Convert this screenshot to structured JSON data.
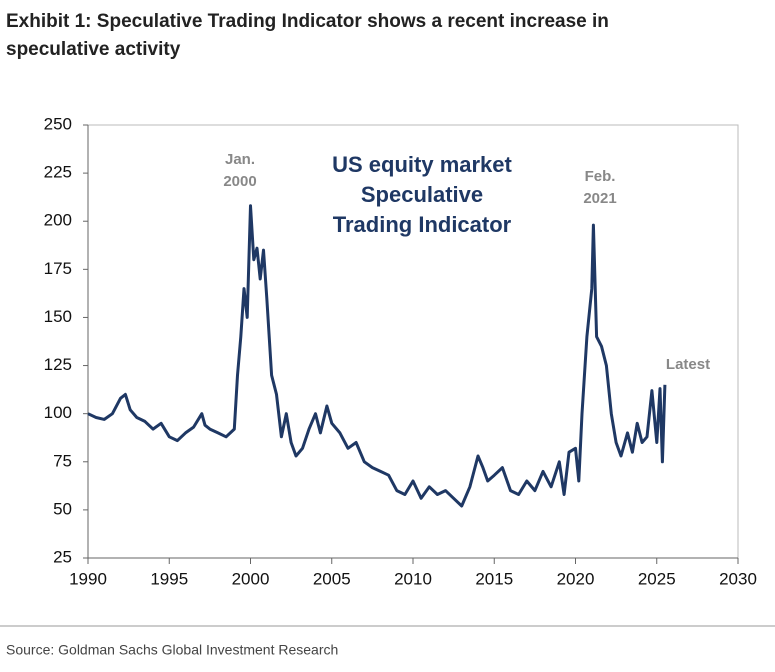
{
  "chart_data": {
    "type": "line",
    "title": [
      "Exhibit 1: Speculative Trading Indicator shows a recent increase in",
      "speculative activity"
    ],
    "inner_title": [
      "US equity market",
      "Speculative",
      "Trading Indicator"
    ],
    "annotations": [
      {
        "lines": [
          "Jan.",
          "2000"
        ]
      },
      {
        "lines": [
          "Feb.",
          "2021"
        ]
      },
      {
        "lines": [
          "Latest"
        ]
      }
    ],
    "source": "Source: Goldman Sachs Global Investment Research",
    "xlim": [
      1990,
      2030
    ],
    "xticks": [
      1990,
      1995,
      2000,
      2005,
      2010,
      2015,
      2020,
      2025,
      2030
    ],
    "ylim": [
      25,
      250
    ],
    "yticks": [
      25,
      50,
      75,
      100,
      125,
      150,
      175,
      200,
      225,
      250
    ],
    "grid": false,
    "series": [
      {
        "name": "Speculative Trading Indicator",
        "color": "#1f3864",
        "x": [
          1990,
          1990.5,
          1991,
          1991.5,
          1992,
          1992.3,
          1992.6,
          1993,
          1993.5,
          1994,
          1994.5,
          1995,
          1995.5,
          1996,
          1996.5,
          1997,
          1997.2,
          1997.5,
          1998,
          1998.5,
          1999,
          1999.2,
          1999.4,
          1999.6,
          1999.8,
          2000,
          2000.2,
          2000.4,
          2000.6,
          2000.8,
          2001,
          2001.3,
          2001.6,
          2001.9,
          2002.2,
          2002.5,
          2002.8,
          2003.2,
          2003.6,
          2004,
          2004.3,
          2004.7,
          2005,
          2005.5,
          2006,
          2006.5,
          2007,
          2007.5,
          2008,
          2008.5,
          2009,
          2009.5,
          2010,
          2010.5,
          2011,
          2011.5,
          2012,
          2012.5,
          2013,
          2013.5,
          2014,
          2014.3,
          2014.6,
          2015,
          2015.5,
          2016,
          2016.5,
          2017,
          2017.5,
          2018,
          2018.5,
          2019,
          2019.3,
          2019.6,
          2020,
          2020.2,
          2020.4,
          2020.7,
          2021,
          2021.1,
          2021.3,
          2021.6,
          2021.9,
          2022.2,
          2022.5,
          2022.8,
          2023.2,
          2023.5,
          2023.8,
          2024.1,
          2024.4,
          2024.7,
          2025,
          2025.2,
          2025.35,
          2025.5
        ],
        "values": [
          100,
          98,
          97,
          100,
          108,
          110,
          102,
          98,
          96,
          92,
          95,
          88,
          86,
          90,
          93,
          100,
          94,
          92,
          90,
          88,
          92,
          120,
          140,
          165,
          150,
          208,
          180,
          186,
          170,
          185,
          160,
          120,
          110,
          88,
          100,
          85,
          78,
          82,
          92,
          100,
          90,
          104,
          95,
          90,
          82,
          85,
          75,
          72,
          70,
          68,
          60,
          58,
          65,
          56,
          62,
          58,
          60,
          56,
          52,
          62,
          78,
          72,
          65,
          68,
          72,
          60,
          58,
          65,
          60,
          70,
          62,
          75,
          58,
          80,
          82,
          65,
          100,
          140,
          165,
          198,
          140,
          135,
          125,
          100,
          85,
          78,
          90,
          80,
          95,
          85,
          88,
          112,
          85,
          113,
          75,
          115
        ]
      }
    ]
  }
}
